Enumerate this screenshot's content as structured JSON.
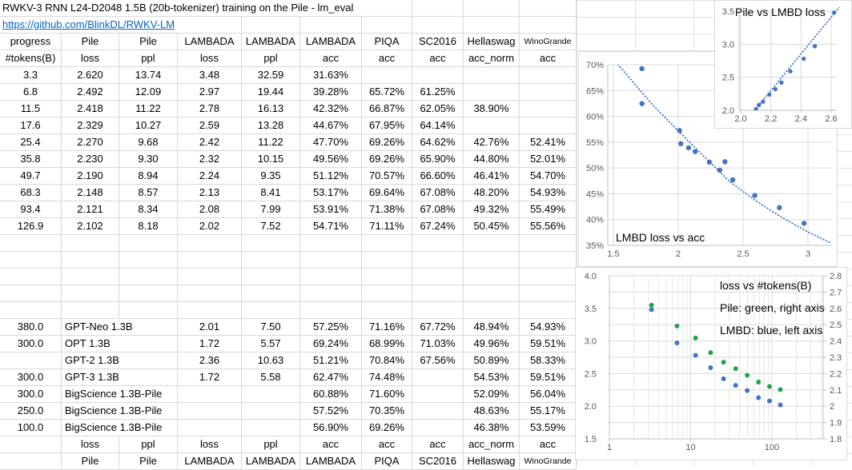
{
  "sheet": {
    "title": "RWKV-3 RNN L24-D2048 1.5B (20b-tokenizer) training on the Pile - lm_eval",
    "link": "https://github.com/BlinkDL/RWKV-LM"
  },
  "colors": {
    "link_blue": "#0563C1",
    "marker_blue": "#4472C4",
    "marker_green": "#21A352",
    "tick_label": "#595959",
    "chart_grid": "#DADADA",
    "axis_line": "#BFBFBF",
    "sheet_grid": "#D9D9D9"
  },
  "table": {
    "header_row1": [
      "progress",
      "Pile",
      "Pile",
      "LAMBADA",
      "LAMBADA",
      "LAMBADA",
      "PIQA",
      "SC2016",
      "Hellaswag",
      "WinoGrande"
    ],
    "header_row2": [
      "#tokens(B)",
      "loss",
      "ppl",
      "loss",
      "ppl",
      "acc",
      "acc",
      "acc",
      "acc_norm",
      "acc"
    ],
    "rwkv_rows": [
      [
        "3.3",
        "2.620",
        "13.74",
        "3.48",
        "32.59",
        "31.63%",
        "",
        "",
        "",
        ""
      ],
      [
        "6.8",
        "2.492",
        "12.09",
        "2.97",
        "19.44",
        "39.28%",
        "65.72%",
        "61.25%",
        "",
        ""
      ],
      [
        "11.5",
        "2.418",
        "11.22",
        "2.78",
        "16.13",
        "42.32%",
        "66.87%",
        "62.05%",
        "38.90%",
        ""
      ],
      [
        "17.6",
        "2.329",
        "10.27",
        "2.59",
        "13.28",
        "44.67%",
        "67.95%",
        "64.14%",
        "",
        ""
      ],
      [
        "25.4",
        "2.270",
        "9.68",
        "2.42",
        "11.22",
        "47.70%",
        "69.26%",
        "64.62%",
        "42.76%",
        "52.41%"
      ],
      [
        "35.8",
        "2.230",
        "9.30",
        "2.32",
        "10.15",
        "49.56%",
        "69.26%",
        "65.90%",
        "44.80%",
        "52.01%"
      ],
      [
        "49.7",
        "2.190",
        "8.94",
        "2.24",
        "9.35",
        "51.12%",
        "70.57%",
        "66.60%",
        "46.41%",
        "54.70%"
      ],
      [
        "68.3",
        "2.148",
        "8.57",
        "2.13",
        "8.41",
        "53.17%",
        "69.64%",
        "67.08%",
        "48.20%",
        "54.93%"
      ],
      [
        "93.4",
        "2.121",
        "8.34",
        "2.08",
        "7.99",
        "53.91%",
        "71.38%",
        "67.08%",
        "49.32%",
        "55.49%"
      ],
      [
        "126.9",
        "2.102",
        "8.18",
        "2.02",
        "7.52",
        "54.71%",
        "71.11%",
        "67.24%",
        "50.45%",
        "55.56%"
      ]
    ],
    "blank_rows": 5,
    "model_rows": [
      [
        "380.0",
        "GPT-Neo 1.3B",
        "",
        "2.01",
        "7.50",
        "57.25%",
        "71.16%",
        "67.72%",
        "48.94%",
        "54.93%"
      ],
      [
        "300.0",
        "OPT 1.3B",
        "",
        "1.72",
        "5.57",
        "69.24%",
        "68.99%",
        "71.03%",
        "49.96%",
        "59.51%"
      ],
      [
        "",
        "GPT-2 1.3B",
        "",
        "2.36",
        "10.63",
        "51.21%",
        "70.84%",
        "67.56%",
        "50.89%",
        "58.33%"
      ],
      [
        "300.0",
        "GPT-3 1.3B",
        "",
        "1.72",
        "5.58",
        "62.47%",
        "74.48%",
        "",
        "54.53%",
        "59.51%"
      ],
      [
        "300.0",
        "BigScience 1.3B-Pile",
        "",
        "",
        "",
        "60.88%",
        "71.60%",
        "",
        "52.09%",
        "56.04%"
      ],
      [
        "250.0",
        "BigScience 1.3B-Pile",
        "",
        "",
        "",
        "57.52%",
        "70.35%",
        "",
        "48.63%",
        "55.17%"
      ],
      [
        "100.0",
        "BigScience 1.3B-Pile",
        "",
        "",
        "",
        "56.90%",
        "69.26%",
        "",
        "46.38%",
        "53.59%"
      ]
    ],
    "footer_row1": [
      "",
      "loss",
      "ppl",
      "loss",
      "ppl",
      "acc",
      "acc",
      "acc",
      "acc_norm",
      "acc"
    ],
    "footer_row2": [
      "",
      "Pile",
      "Pile",
      "LAMBADA",
      "LAMBADA",
      "LAMBADA",
      "PIQA",
      "SC2016",
      "Hellaswag",
      "WinoGrande"
    ]
  },
  "chart_data": [
    {
      "name": "pile-vs-lmbd-loss",
      "type": "scatter",
      "title": "Pile vs LMBD loss",
      "xlim": [
        1.99,
        2.64
      ],
      "ylim": [
        2.0,
        3.5
      ],
      "xticks": [
        {
          "v": 2.0,
          "l": "2.0"
        },
        {
          "v": 2.2,
          "l": "2.2"
        },
        {
          "v": 2.4,
          "l": "2.4"
        },
        {
          "v": 2.6,
          "l": "2.6"
        }
      ],
      "yticks": [
        {
          "v": 2.0,
          "l": "2.0"
        },
        {
          "v": 2.5,
          "l": "2.5"
        },
        {
          "v": 3.0,
          "l": "3.0"
        },
        {
          "v": 3.5,
          "l": "3.5"
        }
      ],
      "points": [
        [
          2.102,
          2.02
        ],
        [
          2.121,
          2.08
        ],
        [
          2.148,
          2.13
        ],
        [
          2.19,
          2.24
        ],
        [
          2.23,
          2.32
        ],
        [
          2.27,
          2.42
        ],
        [
          2.329,
          2.59
        ],
        [
          2.418,
          2.78
        ],
        [
          2.492,
          2.97
        ],
        [
          2.62,
          3.48
        ]
      ],
      "trend": [
        [
          2.088,
          1.99
        ],
        [
          2.655,
          3.56
        ]
      ],
      "marker_color": "#4472C4",
      "grid": true,
      "legend": "none"
    },
    {
      "name": "lmbd-loss-vs-acc",
      "type": "scatter",
      "title": "LMBD loss vs acc",
      "xlim": [
        1.457,
        3.22
      ],
      "ylim": [
        35,
        70
      ],
      "xticks": [
        {
          "v": 1.5,
          "l": "1.5"
        },
        {
          "v": 2,
          "l": "2"
        },
        {
          "v": 2.5,
          "l": "2.5"
        },
        {
          "v": 3,
          "l": "3"
        }
      ],
      "yticks": [
        {
          "v": 35,
          "l": "35%"
        },
        {
          "v": 40,
          "l": "40%"
        },
        {
          "v": 45,
          "l": "45%"
        },
        {
          "v": 50,
          "l": "50%"
        },
        {
          "v": 55,
          "l": "55%"
        },
        {
          "v": 60,
          "l": "60%"
        },
        {
          "v": 65,
          "l": "65%"
        },
        {
          "v": 70,
          "l": "70%"
        }
      ],
      "points": [
        [
          3.48,
          31.63
        ],
        [
          2.97,
          39.28
        ],
        [
          2.78,
          42.32
        ],
        [
          2.59,
          44.67
        ],
        [
          2.42,
          47.7
        ],
        [
          2.32,
          49.56
        ],
        [
          2.24,
          51.12
        ],
        [
          2.13,
          53.17
        ],
        [
          2.08,
          53.91
        ],
        [
          2.02,
          54.71
        ],
        [
          2.01,
          57.25
        ],
        [
          1.72,
          69.24
        ],
        [
          2.36,
          51.21
        ],
        [
          1.72,
          62.47
        ]
      ],
      "trend": [
        [
          1.52,
          70.5
        ],
        [
          1.8,
          62.3
        ],
        [
          2.0,
          57.2
        ],
        [
          2.2,
          52.2
        ],
        [
          2.4,
          47.3
        ],
        [
          2.6,
          43.6
        ],
        [
          2.8,
          40.4
        ],
        [
          3.0,
          37.6
        ],
        [
          3.22,
          34.9
        ]
      ],
      "marker_color": "#4472C4",
      "grid": true,
      "legend": "none"
    },
    {
      "name": "loss-vs-tokens",
      "type": "scatter",
      "x_log": true,
      "legend_lines": [
        "loss vs #tokens(B)",
        "Pile: green, right axis",
        "LMBD: blue, left axis"
      ],
      "x": [
        3.3,
        6.8,
        11.5,
        17.6,
        25.4,
        35.8,
        49.7,
        68.3,
        93.4,
        126.9
      ],
      "series": [
        {
          "name": "Pile",
          "axis": "right",
          "color": "#21A352",
          "values": [
            2.62,
            2.492,
            2.418,
            2.329,
            2.27,
            2.23,
            2.19,
            2.148,
            2.121,
            2.102
          ]
        },
        {
          "name": "LMBD",
          "axis": "left",
          "color": "#4472C4",
          "values": [
            3.48,
            2.97,
            2.78,
            2.59,
            2.42,
            2.32,
            2.24,
            2.13,
            2.08,
            2.02
          ]
        }
      ],
      "xlim": [
        1,
        427
      ],
      "left_ylim": [
        1.5,
        4.0
      ],
      "right_ylim": [
        1.8,
        2.8
      ],
      "xticks": [
        {
          "v": 1,
          "l": "1"
        },
        {
          "v": 10,
          "l": "10"
        },
        {
          "v": 100,
          "l": "100"
        }
      ],
      "left_yticks": [
        {
          "v": 1.5,
          "l": "1.5"
        },
        {
          "v": 2.0,
          "l": "2.0"
        },
        {
          "v": 2.5,
          "l": "2.5"
        },
        {
          "v": 3.0,
          "l": "3.0"
        },
        {
          "v": 3.5,
          "l": "3.5"
        },
        {
          "v": 4.0,
          "l": "4.0"
        }
      ],
      "right_yticks": [
        {
          "v": 1.8,
          "l": "1.8"
        },
        {
          "v": 1.9,
          "l": "1.9"
        },
        {
          "v": 2.0,
          "l": "2"
        },
        {
          "v": 2.1,
          "l": "2.1"
        },
        {
          "v": 2.2,
          "l": "2.2"
        },
        {
          "v": 2.3,
          "l": "2.3"
        },
        {
          "v": 2.4,
          "l": "2.4"
        },
        {
          "v": 2.5,
          "l": "2.5"
        },
        {
          "v": 2.6,
          "l": "2.6"
        },
        {
          "v": 2.7,
          "l": "2.7"
        },
        {
          "v": 2.8,
          "l": "2.8"
        }
      ],
      "grid": true
    }
  ]
}
